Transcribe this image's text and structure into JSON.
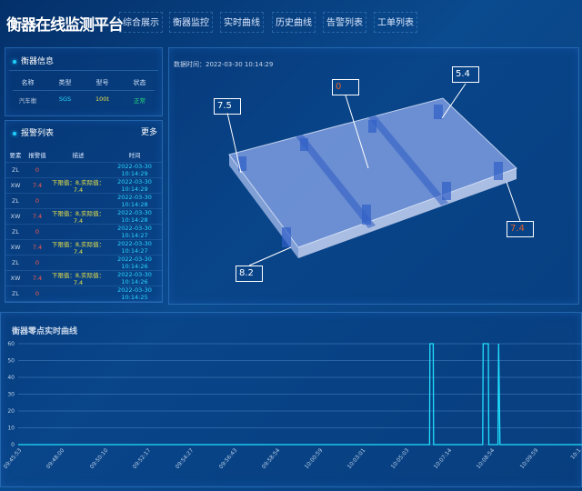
{
  "header": {
    "title": "衡器在线监测平台",
    "tabs": [
      "综合展示",
      "衡器监控",
      "实时曲线",
      "历史曲线",
      "告警列表",
      "工单列表"
    ]
  },
  "scale_info": {
    "title": "衡器信息",
    "columns": [
      "名称",
      "类型",
      "型号",
      "状态"
    ],
    "row": {
      "name": "汽车衡",
      "type": "SGS",
      "model": "100t",
      "status": "正常"
    },
    "colors": {
      "type": "#2ad6ff",
      "model": "#e6e14a",
      "status": "#22e07a"
    }
  },
  "alarm_list": {
    "title": "报警列表",
    "more": "更多",
    "columns": [
      "要素",
      "报警值",
      "描述",
      "时间"
    ],
    "rows": [
      {
        "element": "ZL",
        "value": "0",
        "desc": "",
        "time": "2022-03-30 10:14:29"
      },
      {
        "element": "XW",
        "value": "7.4",
        "desc": "下限值：8,实际值：7.4",
        "time": "2022-03-30 10:14:29"
      },
      {
        "element": "ZL",
        "value": "0",
        "desc": "",
        "time": "2022-03-30 10:14:28"
      },
      {
        "element": "XW",
        "value": "7.4",
        "desc": "下限值：8,实际值：7.4",
        "time": "2022-03-30 10:14:28"
      },
      {
        "element": "ZL",
        "value": "0",
        "desc": "",
        "time": "2022-03-30 10:14:27"
      },
      {
        "element": "XW",
        "value": "7.4",
        "desc": "下限值：8,实际值：7.4",
        "time": "2022-03-30 10:14:27"
      },
      {
        "element": "ZL",
        "value": "0",
        "desc": "",
        "time": "2022-03-30 10:14:26"
      },
      {
        "element": "XW",
        "value": "7.4",
        "desc": "下限值：8,实际值：7.4",
        "time": "2022-03-30 10:14:26"
      },
      {
        "element": "ZL",
        "value": "0",
        "desc": "",
        "time": "2022-03-30 10:14:25"
      }
    ]
  },
  "model_view": {
    "data_time": "数据时间：2022-03-30 10:14:29",
    "sensors": [
      {
        "id": "back-left",
        "value": "7.5",
        "color": "#ffffff"
      },
      {
        "id": "center",
        "value": "0",
        "color": "#e0622a"
      },
      {
        "id": "back-right",
        "value": "5.4",
        "color": "#ffffff"
      },
      {
        "id": "front-right",
        "value": "7.4",
        "color": "#e0622a"
      },
      {
        "id": "front-left",
        "value": "8.2",
        "color": "#ffffff"
      }
    ]
  },
  "chart_data": {
    "type": "line",
    "title": "衡器零点实时曲线",
    "ylim": [
      0,
      60
    ],
    "yticks": [
      0,
      10,
      20,
      30,
      40,
      50,
      60
    ],
    "grid": true,
    "line_color": "#20e0ff",
    "xticks": [
      "09:45:53",
      "09:48:00",
      "09:50:10",
      "09:52:17",
      "09:54:27",
      "09:56:43",
      "09:58:54",
      "10:00:59",
      "10:03:01",
      "10:05:03",
      "10:07:14",
      "10:08:54",
      "10:09:59",
      "10:1"
    ],
    "points": [
      [
        "09:45:53",
        0
      ],
      [
        "10:06:17",
        0
      ],
      [
        "10:06:18",
        60
      ],
      [
        "10:06:28",
        60
      ],
      [
        "10:06:29",
        0
      ],
      [
        "10:08:34",
        0
      ],
      [
        "10:08:35",
        60
      ],
      [
        "10:08:47",
        60
      ],
      [
        "10:08:48",
        0
      ],
      [
        "10:09:04",
        0
      ],
      [
        "10:09:05",
        60
      ],
      [
        "10:09:07",
        0
      ],
      [
        "10:09:59",
        0
      ]
    ]
  }
}
